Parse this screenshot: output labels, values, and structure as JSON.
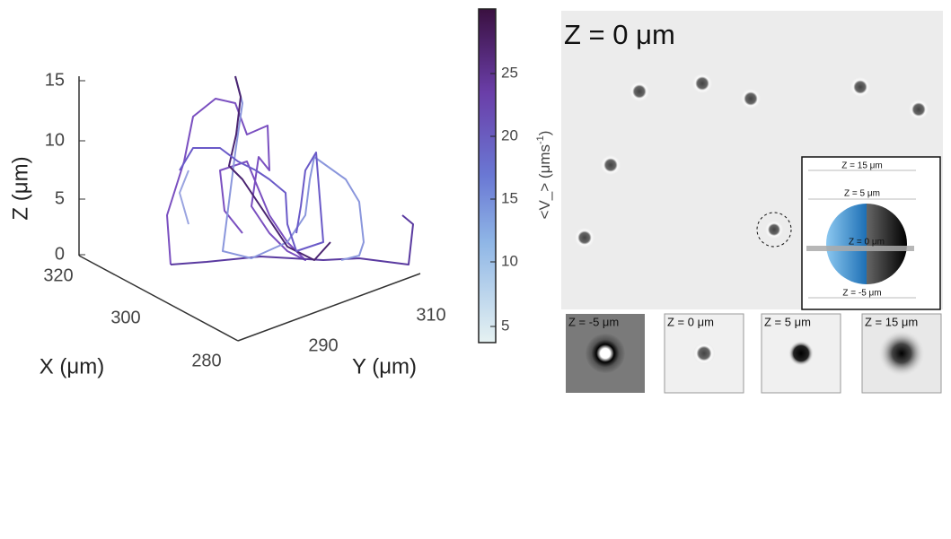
{
  "plot3d": {
    "z_axis": {
      "label": "Z (μm)",
      "ticks": [
        "15",
        "10",
        "5",
        "0"
      ]
    },
    "x_axis": {
      "label": "X (μm)",
      "ticks": [
        "320",
        "300",
        "280"
      ]
    },
    "y_axis": {
      "label": "Y (μm)",
      "ticks": [
        "290",
        "310"
      ]
    },
    "colorbar": {
      "label": "<V_> (μms",
      "label_sup": "-1",
      "label_end": ")",
      "ticks": [
        "25",
        "20",
        "15",
        "10",
        "5"
      ]
    }
  },
  "micrograph": {
    "title": "Z = 0 μm",
    "inset": {
      "labels": [
        "Z = 15 μm",
        "Z = 5 μm",
        "Z = 0 μm",
        "Z = -5 μm"
      ]
    },
    "panels": [
      "Z = -5 μm",
      "Z = 0 μm",
      "Z = 5 μm",
      "Z = 15 μm"
    ]
  }
}
